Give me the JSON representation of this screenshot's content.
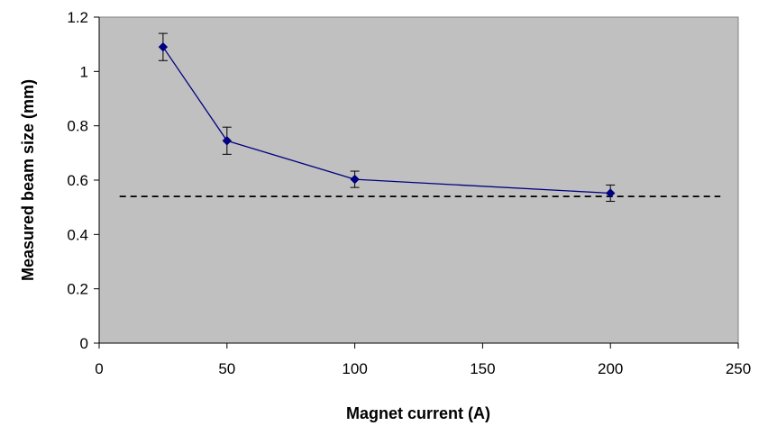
{
  "chart_data": {
    "type": "scatter",
    "xlabel": "Magnet current (A)",
    "ylabel": "Measured beam size (mm)",
    "xlim": [
      0,
      250
    ],
    "ylim": [
      0,
      1.2
    ],
    "x_ticks": [
      0,
      50,
      100,
      150,
      200,
      250
    ],
    "x_tick_labels": [
      "0",
      "50",
      "100",
      "150",
      "200",
      "250"
    ],
    "y_ticks": [
      0,
      0.2,
      0.4,
      0.6,
      0.8,
      1.0,
      1.2
    ],
    "y_tick_labels": [
      "0",
      "0.2",
      "0.4",
      "0.6",
      "0.8",
      "1",
      "1.2"
    ],
    "x_axis_scale": "categorical positions: 25→~25, 50→50, 100→100, 200→200 on linear 0–250 axis",
    "grid": false,
    "legend": "none",
    "plot_background": "#c0c0c0",
    "series": [
      {
        "x": [
          25,
          50,
          100,
          200
        ],
        "plot_x": [
          25,
          50,
          100,
          200
        ],
        "y": [
          1.09,
          0.745,
          0.603,
          0.552
        ],
        "error": [
          0.05,
          0.05,
          0.03,
          0.03
        ],
        "color": "#000080",
        "marker": "diamond",
        "line": true
      }
    ],
    "reference_lines": [
      {
        "y": 0.54,
        "x_from": 8,
        "x_to": 243,
        "style": "dashed",
        "color": "#000000"
      }
    ]
  }
}
